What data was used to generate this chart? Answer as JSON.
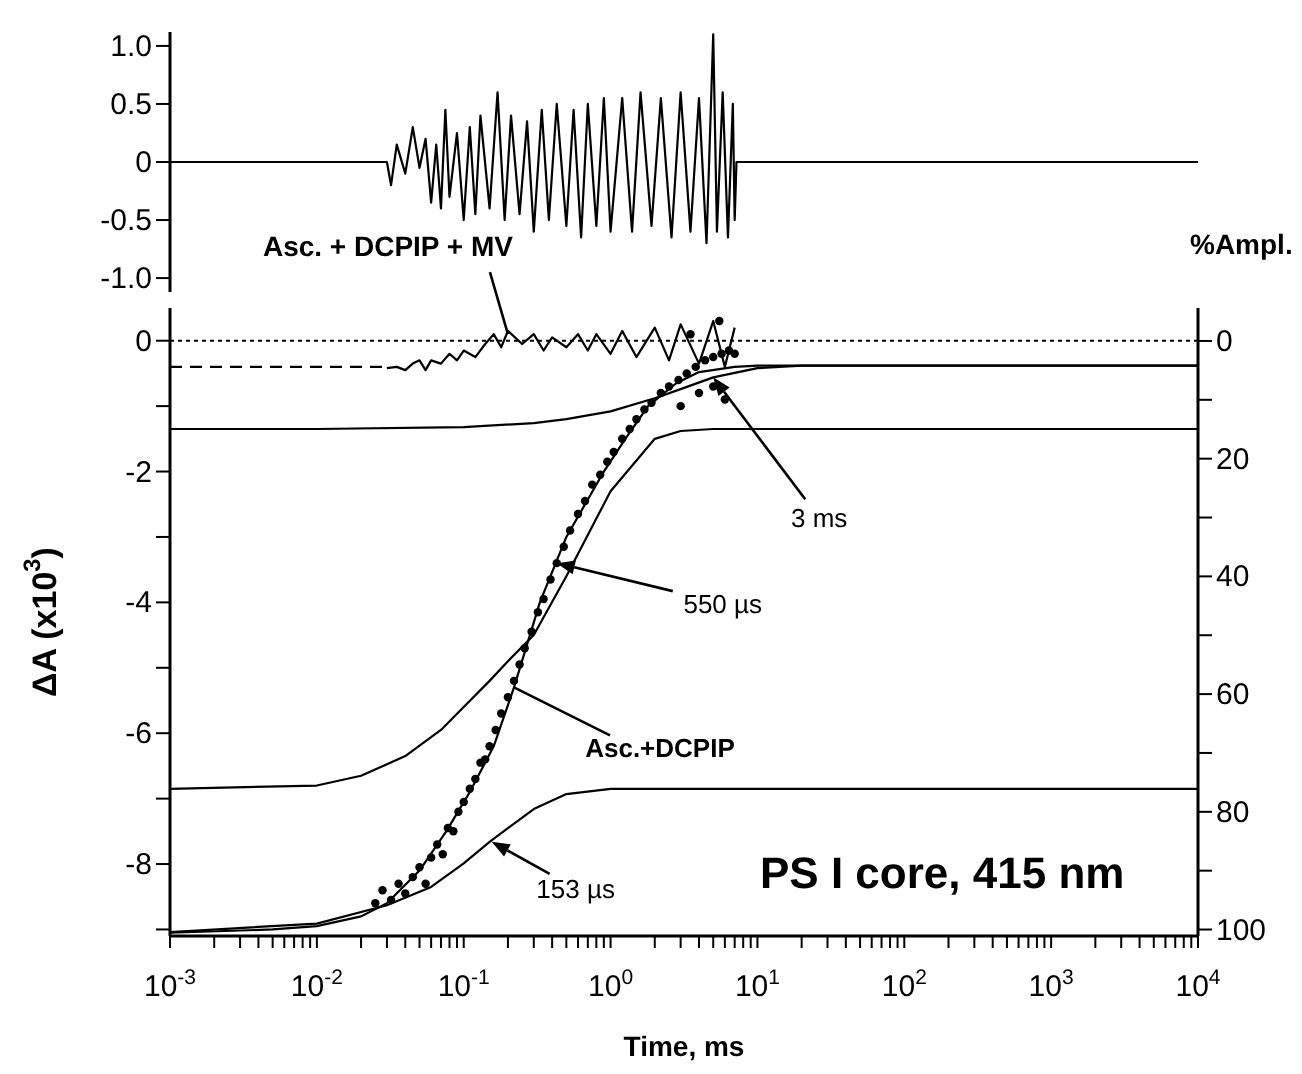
{
  "chart_data": [
    {
      "type": "line",
      "tick_labels": "y",
      "log": "x",
      "xlim": [
        0.001,
        10000
      ],
      "ylim": [
        -1.12,
        1.12
      ],
      "yticks": [
        {
          "value": 1,
          "label": "1.0"
        },
        {
          "value": 0.5,
          "label": "0.5"
        },
        0,
        {
          "value": -0.5,
          "label": "-0.5"
        },
        {
          "value": -1,
          "label": "-1.0"
        }
      ],
      "series": [
        {
          "type": "line",
          "color": "#000000",
          "line_style": "solid",
          "x": [
            0.001,
            0.03,
            0.032,
            0.035,
            0.04,
            0.045,
            0.05,
            0.055,
            0.06,
            0.065,
            0.07,
            0.075,
            0.08,
            0.09,
            0.1,
            0.11,
            0.12,
            0.13,
            0.15,
            0.17,
            0.19,
            0.21,
            0.24,
            0.27,
            0.3,
            0.34,
            0.38,
            0.43,
            0.5,
            0.56,
            0.63,
            0.7,
            0.8,
            0.9,
            1,
            1.2,
            1.4,
            1.6,
            1.9,
            2.2,
            2.6,
            3,
            3.5,
            4,
            4.5,
            5,
            5.3,
            5.8,
            6.3,
            6.8,
            7,
            7.2,
            10000
          ],
          "values": [
            0,
            0,
            -0.2,
            0.15,
            -0.1,
            0.3,
            -0.05,
            0.2,
            -0.35,
            0.15,
            -0.4,
            0.45,
            -0.3,
            0.25,
            -0.5,
            0.3,
            -0.45,
            0.4,
            -0.4,
            0.6,
            -0.5,
            0.4,
            -0.45,
            0.35,
            -0.6,
            0.45,
            -0.5,
            0.5,
            -0.55,
            0.45,
            -0.65,
            0.5,
            -0.55,
            0.55,
            -0.6,
            0.55,
            -0.6,
            0.6,
            -0.55,
            0.55,
            -0.65,
            0.6,
            -0.6,
            0.55,
            -0.7,
            1.1,
            -0.6,
            0.6,
            -0.65,
            0.5,
            -0.5,
            0,
            0
          ]
        }
      ]
    },
    {
      "type": "line",
      "log": "x",
      "xlabel": "Time, ms",
      "ylabel": "ΔA (x10$^{3}$)",
      "y2label": "%Ampl.",
      "xlim": [
        0.001,
        10000
      ],
      "xticks": [
        {
          "value": 0.001,
          "label": "10$^{-3}$"
        },
        {
          "value": 0.01,
          "label": "10$^{-2}$"
        },
        {
          "value": 0.1,
          "label": "10$^{-1}$"
        },
        {
          "value": 1,
          "label": "10$^{0}$"
        },
        {
          "value": 10,
          "label": "10$^{1}$"
        },
        {
          "value": 100,
          "label": "10$^{2}$"
        },
        {
          "value": 1000,
          "label": "10$^{3}$"
        },
        {
          "value": 10000,
          "label": "10$^{4}$"
        },
        {
          "value": 0.002,
          "label": null
        },
        {
          "value": 0.003,
          "label": null
        },
        {
          "value": 0.004,
          "label": null
        },
        {
          "value": 0.005,
          "label": null
        },
        {
          "value": 0.006,
          "label": null
        },
        {
          "value": 0.007,
          "label": null
        },
        {
          "value": 0.008,
          "label": null
        },
        {
          "value": 0.009,
          "label": null
        },
        {
          "value": 0.02,
          "label": null
        },
        {
          "value": 0.03,
          "label": null
        },
        {
          "value": 0.04,
          "label": null
        },
        {
          "value": 0.05,
          "label": null
        },
        {
          "value": 0.06,
          "label": null
        },
        {
          "value": 0.07,
          "label": null
        },
        {
          "value": 0.08,
          "label": null
        },
        {
          "value": 0.09,
          "label": null
        },
        {
          "value": 0.2,
          "label": null
        },
        {
          "value": 0.3,
          "label": null
        },
        {
          "value": 0.4,
          "label": null
        },
        {
          "value": 0.5,
          "label": null
        },
        {
          "value": 0.6,
          "label": null
        },
        {
          "value": 0.7,
          "label": null
        },
        {
          "value": 0.8,
          "label": null
        },
        {
          "value": 0.9,
          "label": null
        },
        {
          "value": 2,
          "label": null
        },
        {
          "value": 3,
          "label": null
        },
        {
          "value": 4,
          "label": null
        },
        {
          "value": 5,
          "label": null
        },
        {
          "value": 6,
          "label": null
        },
        {
          "value": 7,
          "label": null
        },
        {
          "value": 8,
          "label": null
        },
        {
          "value": 9,
          "label": null
        },
        {
          "value": 20,
          "label": null
        },
        {
          "value": 30,
          "label": null
        },
        {
          "value": 40,
          "label": null
        },
        {
          "value": 50,
          "label": null
        },
        {
          "value": 60,
          "label": null
        },
        {
          "value": 70,
          "label": null
        },
        {
          "value": 80,
          "label": null
        },
        {
          "value": 90,
          "label": null
        },
        {
          "value": 200,
          "label": null
        },
        {
          "value": 300,
          "label": null
        },
        {
          "value": 400,
          "label": null
        },
        {
          "value": 500,
          "label": null
        },
        {
          "value": 600,
          "label": null
        },
        {
          "value": 700,
          "label": null
        },
        {
          "value": 800,
          "label": null
        },
        {
          "value": 900,
          "label": null
        },
        {
          "value": 2000,
          "label": null
        },
        {
          "value": 3000,
          "label": null
        },
        {
          "value": 4000,
          "label": null
        },
        {
          "value": 5000,
          "label": null
        },
        {
          "value": 6000,
          "label": null
        },
        {
          "value": 7000,
          "label": null
        },
        {
          "value": 8000,
          "label": null
        },
        {
          "value": 9000,
          "label": null
        }
      ],
      "ylim": [
        -9.1,
        0.5
      ],
      "yticks": [
        0,
        -2,
        -4,
        -6,
        -8,
        {
          "value": -1,
          "label": null
        },
        {
          "value": -3,
          "label": null
        },
        {
          "value": -5,
          "label": null
        },
        {
          "value": -7,
          "label": null
        },
        {
          "value": -9,
          "label": null
        }
      ],
      "y2lim": [
        101.1,
        -5.6
      ],
      "y2ticks": [
        0,
        20,
        40,
        60,
        80,
        100,
        {
          "value": 10,
          "label": null
        },
        {
          "value": 30,
          "label": null
        },
        {
          "value": 50,
          "label": null
        },
        {
          "value": 70,
          "label": null
        },
        {
          "value": 90,
          "label": null
        }
      ],
      "ref_lines": [
        {
          "axis": "y",
          "value": 0,
          "line_style": "dotted",
          "color": "#000000"
        }
      ],
      "series": [
        {
          "type": "scatter",
          "marker": "circle",
          "color": "#000000",
          "x": [
            0.025,
            0.028,
            0.032,
            0.036,
            0.04,
            0.045,
            0.05,
            0.055,
            0.06,
            0.066,
            0.072,
            0.078,
            0.085,
            0.092,
            0.1,
            0.11,
            0.12,
            0.13,
            0.14,
            0.15,
            0.165,
            0.18,
            0.2,
            0.22,
            0.24,
            0.26,
            0.29,
            0.32,
            0.35,
            0.39,
            0.43,
            0.48,
            0.53,
            0.6,
            0.67,
            0.75,
            0.85,
            0.95,
            1.05,
            1.2,
            1.35,
            1.5,
            1.7,
            1.9,
            2.2,
            2.5,
            2.9,
            3.3,
            3.8,
            4.4,
            5,
            5.7,
            6.4,
            7,
            3,
            4,
            5,
            6,
            3.5,
            5.5
          ],
          "values": [
            -8.6,
            -8.4,
            -8.55,
            -8.3,
            -8.45,
            -8.2,
            -8.05,
            -8.3,
            -7.9,
            -7.7,
            -7.85,
            -7.45,
            -7.5,
            -7.2,
            -7.05,
            -6.85,
            -6.7,
            -6.45,
            -6.4,
            -6.2,
            -5.95,
            -5.7,
            -5.45,
            -5.2,
            -4.95,
            -4.7,
            -4.45,
            -4.15,
            -3.95,
            -3.65,
            -3.4,
            -3.15,
            -2.9,
            -2.65,
            -2.45,
            -2.2,
            -2.05,
            -1.85,
            -1.7,
            -1.5,
            -1.35,
            -1.2,
            -1.05,
            -0.95,
            -0.8,
            -0.7,
            -0.6,
            -0.5,
            -0.4,
            -0.3,
            -0.25,
            -0.2,
            -0.15,
            -0.2,
            -1,
            -0.8,
            -0.7,
            -0.9,
            0.1,
            0.3
          ]
        },
        {
          "type": "line",
          "color": "#000000",
          "line_style": "solid",
          "x": [
            0.001,
            0.005,
            0.01,
            0.02,
            0.03,
            0.05,
            0.076,
            0.11,
            0.16,
            0.22,
            0.33,
            0.5,
            0.9,
            1.26,
            1.8,
            2.8,
            4,
            7,
            10,
            10000
          ],
          "values": [
            -9.05,
            -9,
            -8.95,
            -8.8,
            -8.6,
            -8.1,
            -7.5,
            -6.9,
            -6.2,
            -5.3,
            -4,
            -3,
            -2,
            -1.5,
            -1,
            -0.65,
            -0.48,
            -0.4,
            -0.38,
            -0.38
          ]
        },
        {
          "type": "line",
          "color": "#000000",
          "line_style": "solid",
          "x": [
            0.001,
            0.01,
            0.03,
            0.06,
            0.1,
            0.15,
            0.2,
            0.3,
            0.5,
            1,
            10000
          ],
          "values": [
            -9.04,
            -8.91,
            -8.63,
            -8.35,
            -7.99,
            -7.66,
            -7.45,
            -7.16,
            -6.93,
            -6.85,
            -6.85
          ]
        },
        {
          "type": "line",
          "color": "#000000",
          "line_style": "solid",
          "x": [
            0.001,
            0.01,
            0.02,
            0.04,
            0.07,
            0.1,
            0.15,
            0.2,
            0.3,
            0.5,
            1,
            2,
            3,
            5,
            10000
          ],
          "values": [
            -6.85,
            -6.8,
            -6.65,
            -6.35,
            -5.95,
            -5.6,
            -5.2,
            -4.9,
            -4.5,
            -3.6,
            -2.3,
            -1.5,
            -1.38,
            -1.35,
            -1.35
          ]
        },
        {
          "type": "line",
          "color": "#000000",
          "line_style": "solid",
          "x": [
            0.001,
            0.01,
            0.1,
            0.3,
            0.5,
            1,
            2,
            3,
            5,
            10,
            20,
            10000
          ],
          "values": [
            -1.35,
            -1.35,
            -1.32,
            -1.26,
            -1.2,
            -1.08,
            -0.88,
            -0.74,
            -0.56,
            -0.42,
            -0.38,
            -0.38
          ]
        },
        {
          "type": "line",
          "color": "#000000",
          "line_style": "dashed",
          "x": [
            0.001,
            0.03
          ],
          "values": [
            -0.4,
            -0.4
          ]
        },
        {
          "type": "line",
          "color": "#000000",
          "line_style": "solid",
          "x": [
            0.03,
            0.035,
            0.04,
            0.045,
            0.05,
            0.055,
            0.06,
            0.07,
            0.08,
            0.09,
            0.1,
            0.12,
            0.14,
            0.16,
            0.18,
            0.2,
            0.25,
            0.3,
            0.35,
            0.4,
            0.5,
            0.6,
            0.7,
            0.8,
            1,
            1.2,
            1.5,
            2,
            2.5,
            3,
            4,
            5,
            6,
            7
          ],
          "values": [
            -0.42,
            -0.4,
            -0.45,
            -0.35,
            -0.3,
            -0.45,
            -0.3,
            -0.35,
            -0.2,
            -0.3,
            -0.15,
            -0.25,
            -0.05,
            0.1,
            -0.1,
            0.15,
            -0.05,
            0.1,
            -0.15,
            0.05,
            -0.1,
            0.1,
            -0.15,
            0.1,
            -0.2,
            0.15,
            -0.25,
            0.2,
            -0.3,
            0.25,
            -0.35,
            0.3,
            -0.4,
            0.2
          ]
        }
      ],
      "annotations": [
        {
          "text": "Asc. + DCPIP + MV",
          "x": 0.2,
          "y": 0.1
        },
        {
          "text": "3 ms",
          "x": 5,
          "y": -0.56
        },
        {
          "text": "550 µs",
          "x": 0.43,
          "y": -3.4
        },
        {
          "text": "Asc.+DCPIP",
          "x": 0.22,
          "y": -5.3
        },
        {
          "text": "153 µs",
          "x": 0.155,
          "y": -7.66
        },
        "PS I core, 415 nm"
      ]
    }
  ]
}
